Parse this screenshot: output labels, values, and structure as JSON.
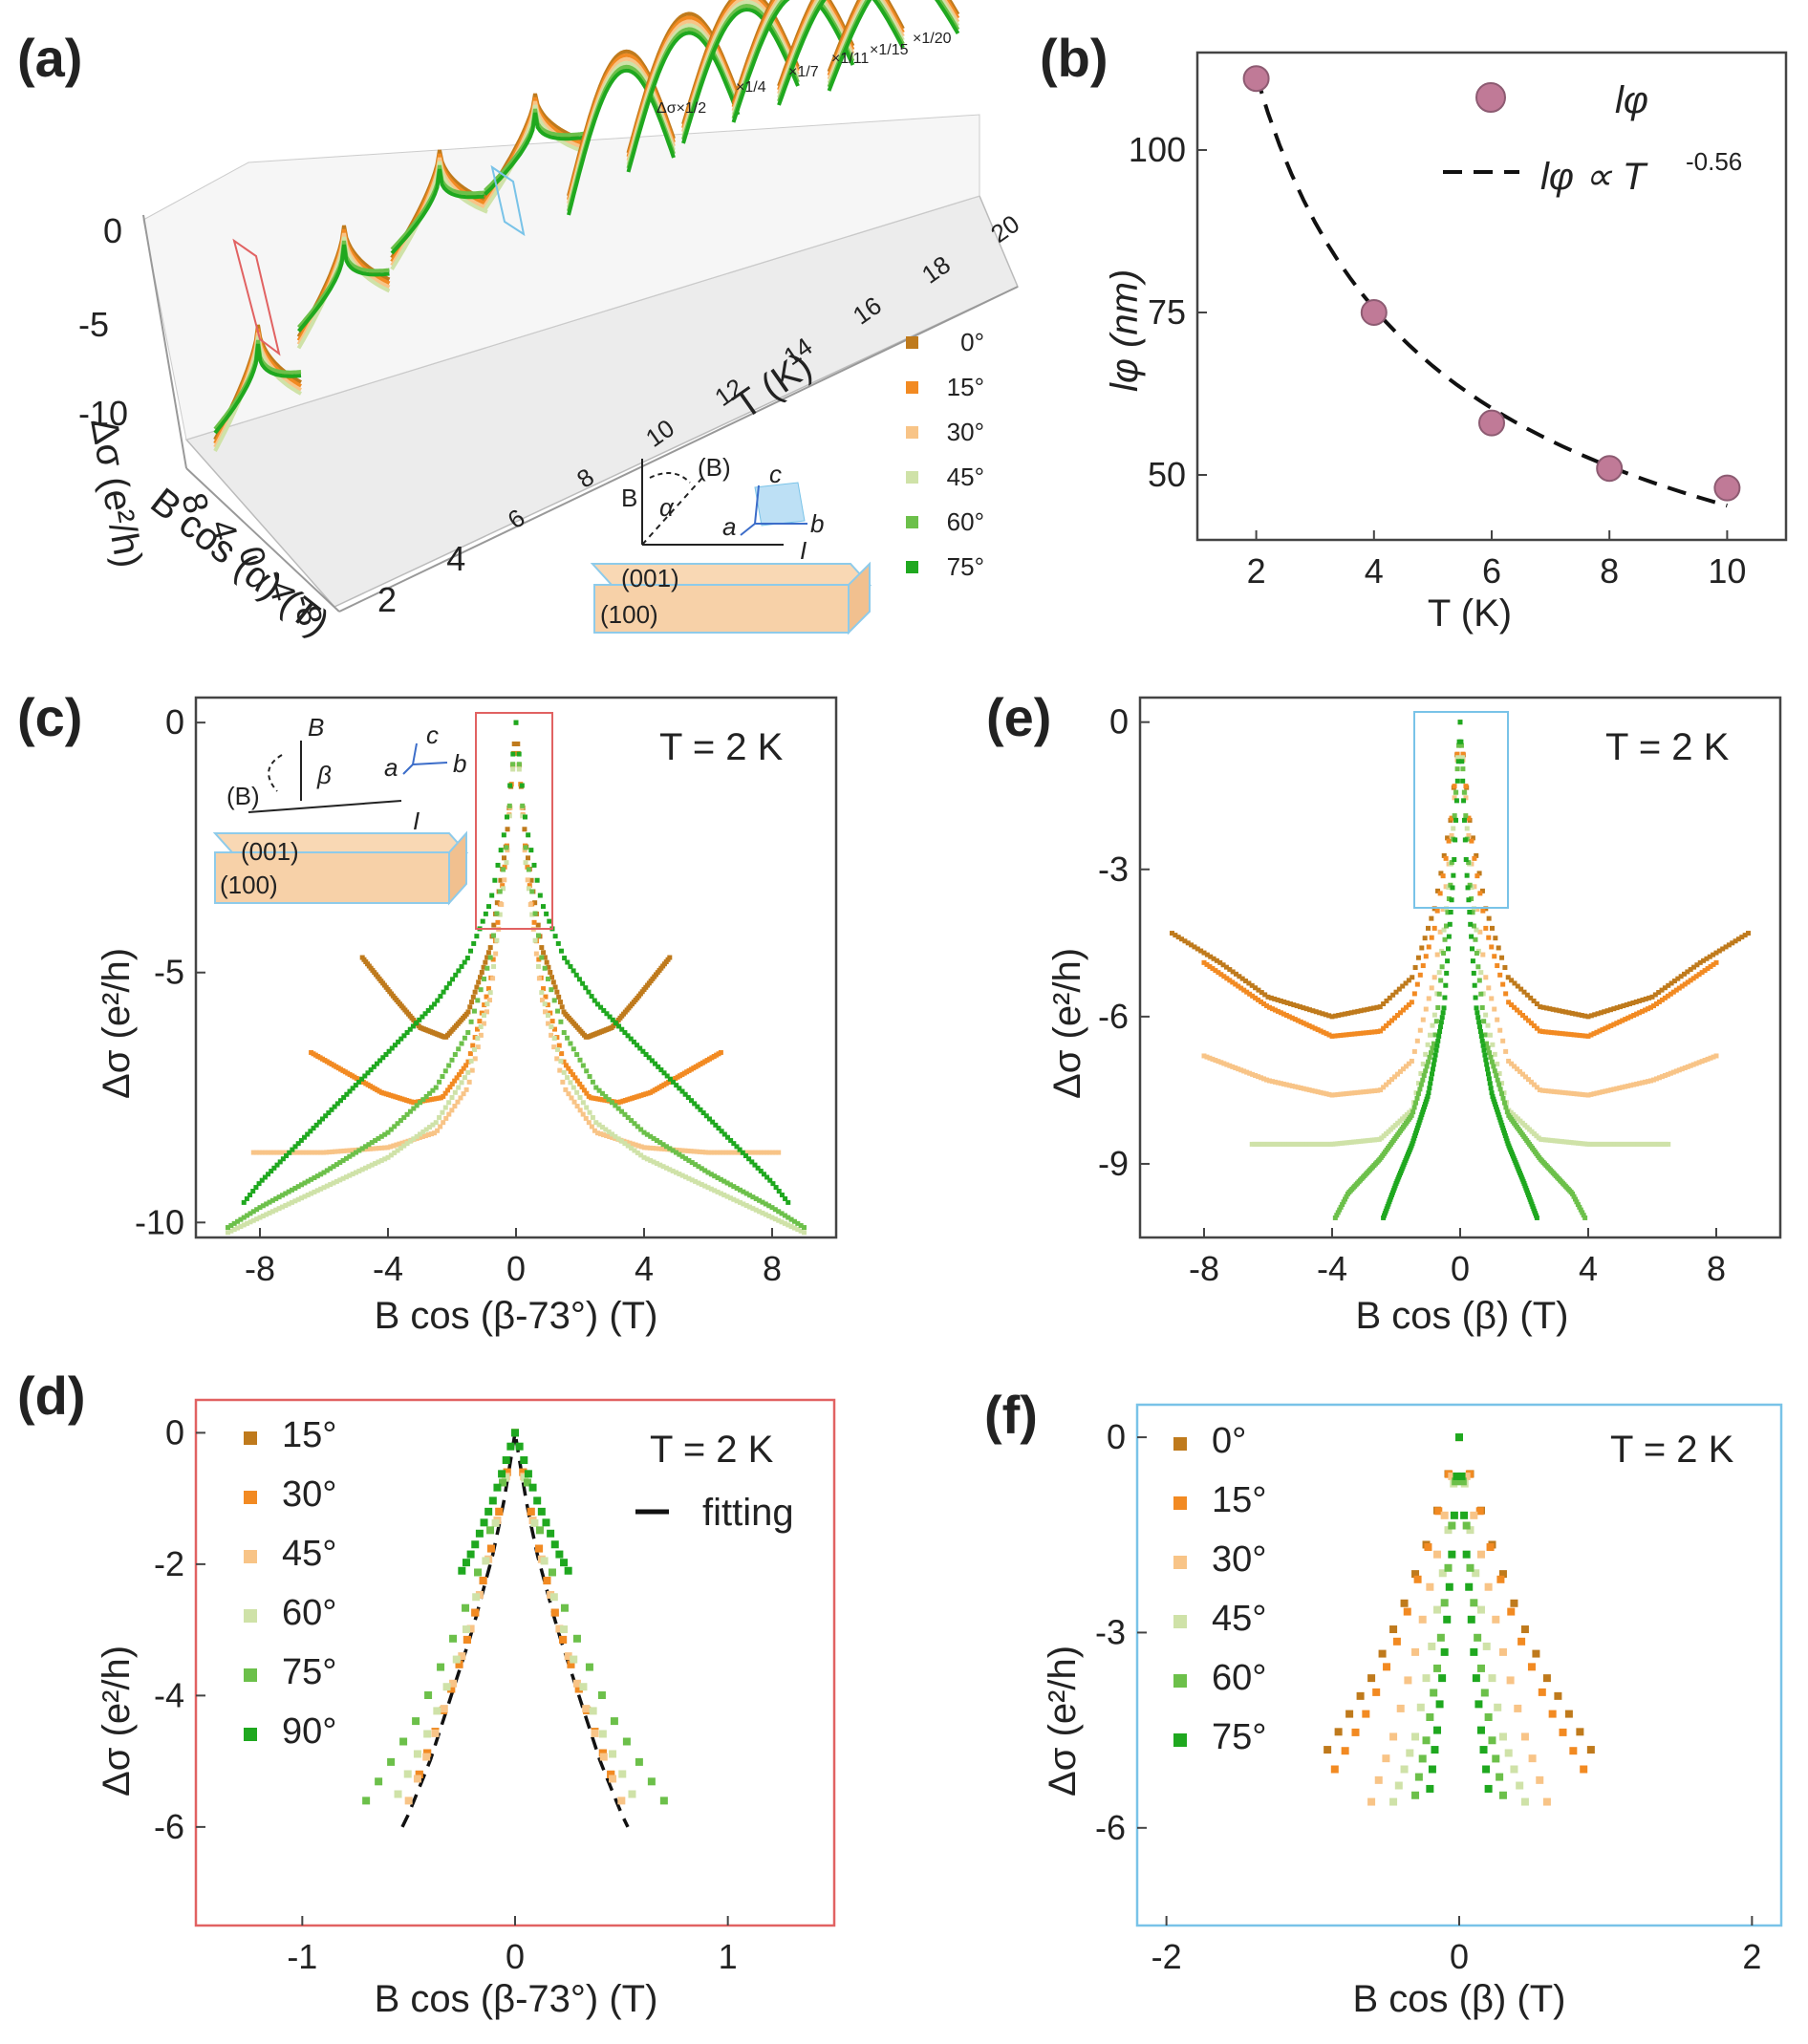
{
  "colors": {
    "deg0": "#bf7a1c",
    "deg15": "#f28a22",
    "deg30": "#f8c487",
    "deg45": "#cfe2a8",
    "deg60": "#6cc04a",
    "deg75": "#1fa81f",
    "marker_b": "#c07a97",
    "box_red": "#e16262",
    "box_blue": "#79c3e8"
  },
  "chart_data": [
    {
      "id": "a",
      "panel_label": "(a)",
      "type": "line",
      "title": "",
      "xlabel": "T (K)",
      "ylabel": "Δσ (e²/h)",
      "zlabel": "B cos (α) (T)",
      "temperature_ticks": [
        "2",
        "4",
        "6",
        "8",
        "10",
        "12",
        "14",
        "16",
        "18",
        "20"
      ],
      "y_ticks": [
        "0",
        "-5",
        "-10"
      ],
      "b_ticks": [
        "8",
        "4",
        "0",
        "-4",
        "-8"
      ],
      "scale_labels": [
        "Δσ×1/2",
        "×1/4",
        "×1/7",
        "×1/11",
        "×1/15",
        "×1/20"
      ],
      "legend": [
        "0°",
        "15°",
        "30°",
        "45°",
        "60°",
        "75°"
      ],
      "inset": {
        "field": "B",
        "angle": "α",
        "rot_field": "(B)",
        "axis_a": "a",
        "axis_b": "b",
        "axis_c": "c",
        "current": "I",
        "face_top": "(001)",
        "face_front": "(100)"
      }
    },
    {
      "id": "b",
      "panel_label": "(b)",
      "type": "scatter",
      "xlabel": "T (K)",
      "ylabel": "lφ (nm)",
      "x": [
        2,
        4,
        6,
        8,
        10
      ],
      "y": [
        111,
        75,
        58,
        51,
        48
      ],
      "fit": {
        "label": "lφ ∝ T",
        "exponent": "-0.56",
        "a": 111.5,
        "p": -0.56
      },
      "legend": [
        "lφ"
      ],
      "xlim": [
        1,
        11
      ],
      "ylim": [
        40,
        115
      ],
      "xticks": [
        "2",
        "4",
        "6",
        "8",
        "10"
      ],
      "yticks": [
        "50",
        "75",
        "100"
      ]
    },
    {
      "id": "c",
      "panel_label": "(c)",
      "type": "scatter",
      "annotation": "T = 2 K",
      "xlabel": "B cos (β-73°) (T)",
      "ylabel": "Δσ (e²/h)",
      "xlim": [
        -10,
        10
      ],
      "ylim": [
        -10.3,
        0.5
      ],
      "xticks": [
        "-8",
        "-4",
        "0",
        "4",
        "8"
      ],
      "yticks": [
        "0",
        "-5",
        "-10"
      ],
      "inset": {
        "field": "B",
        "angle": "β",
        "rot_field": "(B)",
        "axis_a": "a",
        "axis_b": "b",
        "axis_c": "c",
        "current": "I",
        "face_top": "(001)",
        "face_front": "(100)"
      },
      "series": [
        {
          "name": "15°",
          "color": "#bf7a1c",
          "bmax": 4.8,
          "x": [
            0,
            0.3,
            0.8,
            1.5,
            2.2,
            3.0,
            3.8,
            4.8
          ],
          "y": [
            0,
            -2.4,
            -4.5,
            -5.8,
            -6.3,
            -6.1,
            -5.5,
            -4.7
          ]
        },
        {
          "name": "30°",
          "color": "#f28a22",
          "bmax": 6.4,
          "x": [
            0,
            0.3,
            0.8,
            1.5,
            2.3,
            3.2,
            4.2,
            5.3,
            6.4
          ],
          "y": [
            0,
            -2.6,
            -5.2,
            -6.8,
            -7.5,
            -7.6,
            -7.4,
            -7.0,
            -6.6
          ]
        },
        {
          "name": "45°",
          "color": "#f8c487",
          "bmax": 8.2,
          "x": [
            0,
            0.3,
            0.8,
            1.5,
            2.5,
            4.0,
            6.0,
            8.2
          ],
          "y": [
            0,
            -2.8,
            -5.5,
            -7.3,
            -8.2,
            -8.5,
            -8.6,
            -8.6
          ]
        },
        {
          "name": "60°",
          "color": "#cfe2a8",
          "bmax": 9.0,
          "x": [
            0,
            0.3,
            0.8,
            1.5,
            2.5,
            4.0,
            6.0,
            8.0,
            9.0
          ],
          "y": [
            0,
            -2.8,
            -5.4,
            -7.0,
            -8.0,
            -8.7,
            -9.3,
            -9.9,
            -10.2
          ]
        },
        {
          "name": "75°",
          "color": "#6cc04a",
          "bmax": 9.0,
          "x": [
            0,
            0.3,
            0.8,
            1.5,
            2.5,
            4.0,
            6.0,
            8.0,
            9.0
          ],
          "y": [
            0,
            -2.5,
            -4.7,
            -6.2,
            -7.3,
            -8.2,
            -9.0,
            -9.7,
            -10.1
          ]
        },
        {
          "name": "90°",
          "color": "#1fa81f",
          "bmax": 8.5,
          "x": [
            0,
            0.3,
            0.8,
            1.5,
            2.5,
            4.0,
            6.0,
            8.0,
            8.5
          ],
          "y": [
            0,
            -2.0,
            -3.6,
            -4.7,
            -5.6,
            -6.6,
            -7.9,
            -9.2,
            -9.6
          ]
        }
      ]
    },
    {
      "id": "d",
      "panel_label": "(d)",
      "type": "scatter",
      "annotation": "T = 2 K",
      "xlabel": "B cos (β-73°) (T)",
      "ylabel": "Δσ (e²/h)",
      "xlim": [
        -1.5,
        1.5
      ],
      "ylim": [
        -7.5,
        0.5
      ],
      "xticks": [
        "-1",
        "0",
        "1"
      ],
      "yticks": [
        "0",
        "-2",
        "-4",
        "-6"
      ],
      "fit_label": "fitting",
      "fit": {
        "x": [
          0,
          0.05,
          0.1,
          0.15,
          0.2,
          0.25,
          0.3,
          0.35,
          0.4,
          0.45,
          0.5,
          0.53
        ],
        "y": [
          0,
          -1.0,
          -1.8,
          -2.4,
          -3.0,
          -3.5,
          -4.0,
          -4.5,
          -5.0,
          -5.4,
          -5.8,
          -6.0
        ]
      },
      "series": [
        {
          "name": "15°",
          "color": "#bf7a1c",
          "bmax": 0.45,
          "x": [
            0,
            0.1,
            0.2,
            0.3,
            0.45
          ],
          "y": [
            0,
            -1.6,
            -2.9,
            -3.9,
            -5.2
          ]
        },
        {
          "name": "30°",
          "color": "#f28a22",
          "bmax": 0.45,
          "x": [
            0,
            0.1,
            0.2,
            0.3,
            0.45
          ],
          "y": [
            0,
            -1.6,
            -2.9,
            -3.9,
            -5.2
          ]
        },
        {
          "name": "45°",
          "color": "#f8c487",
          "bmax": 0.5,
          "x": [
            0,
            0.1,
            0.2,
            0.3,
            0.4,
            0.5
          ],
          "y": [
            0,
            -1.6,
            -2.9,
            -3.9,
            -4.8,
            -5.6
          ]
        },
        {
          "name": "60°",
          "color": "#cfe2a8",
          "bmax": 0.55,
          "x": [
            0,
            0.1,
            0.2,
            0.3,
            0.4,
            0.55
          ],
          "y": [
            0,
            -1.5,
            -2.7,
            -3.7,
            -4.5,
            -5.5
          ]
        },
        {
          "name": "75°",
          "color": "#6cc04a",
          "bmax": 0.7,
          "x": [
            0,
            0.1,
            0.2,
            0.3,
            0.45,
            0.6,
            0.7
          ],
          "y": [
            0,
            -1.3,
            -2.4,
            -3.2,
            -4.3,
            -5.1,
            -5.6
          ]
        },
        {
          "name": "90°",
          "color": "#1fa81f",
          "bmax": 0.25,
          "x": [
            0,
            0.1,
            0.2,
            0.25
          ],
          "y": [
            0,
            -1.0,
            -1.8,
            -2.1
          ]
        }
      ]
    },
    {
      "id": "e",
      "panel_label": "(e)",
      "type": "scatter",
      "annotation": "T = 2 K",
      "xlabel": "B cos (β) (T)",
      "ylabel": "Δσ (e²/h)",
      "xlim": [
        -10,
        10
      ],
      "ylim": [
        -10.5,
        0.5
      ],
      "xticks": [
        "-8",
        "-4",
        "0",
        "4",
        "8"
      ],
      "yticks": [
        "0",
        "-3",
        "-6",
        "-9"
      ],
      "series": [
        {
          "name": "0°",
          "color": "#bf7a1c",
          "bmax": 9.0,
          "x": [
            0,
            0.3,
            0.8,
            1.5,
            2.5,
            4.0,
            6.0,
            7.5,
            9.0
          ],
          "y": [
            0,
            -2.0,
            -3.8,
            -5.2,
            -5.8,
            -6.0,
            -5.6,
            -4.9,
            -4.3
          ]
        },
        {
          "name": "15°",
          "color": "#f28a22",
          "bmax": 8.0,
          "x": [
            0,
            0.3,
            0.8,
            1.5,
            2.5,
            4.0,
            6.0,
            8.0
          ],
          "y": [
            0,
            -2.2,
            -4.2,
            -5.7,
            -6.3,
            -6.4,
            -5.8,
            -4.9
          ]
        },
        {
          "name": "30°",
          "color": "#f8c487",
          "bmax": 8.0,
          "x": [
            0,
            0.3,
            0.8,
            1.5,
            2.5,
            4.0,
            6.0,
            8.0
          ],
          "y": [
            0,
            -2.6,
            -5.2,
            -6.9,
            -7.5,
            -7.6,
            -7.3,
            -6.8
          ]
        },
        {
          "name": "45°",
          "color": "#cfe2a8",
          "bmax": 6.5,
          "x": [
            0,
            0.3,
            0.8,
            1.5,
            2.5,
            4.0,
            6.5
          ],
          "y": [
            0,
            -3.0,
            -6.0,
            -7.9,
            -8.5,
            -8.6,
            -8.6
          ]
        },
        {
          "name": "60°",
          "color": "#6cc04a",
          "bmax": 3.9,
          "x": [
            0,
            0.3,
            0.8,
            1.5,
            2.5,
            3.5,
            3.9
          ],
          "y": [
            0,
            -3.3,
            -6.5,
            -8.0,
            -8.9,
            -9.6,
            -10.1
          ]
        },
        {
          "name": "75°",
          "color": "#1fa81f",
          "bmax": 2.4,
          "x": [
            0,
            0.2,
            0.5,
            1.0,
            1.5,
            2.0,
            2.4
          ],
          "y": [
            0,
            -3.0,
            -5.8,
            -7.6,
            -8.6,
            -9.4,
            -10.1
          ]
        }
      ]
    },
    {
      "id": "f",
      "panel_label": "(f)",
      "type": "scatter",
      "annotation": "T = 2 K",
      "xlabel": "B cos (β) (T)",
      "ylabel": "Δσ (e²/h)",
      "xlim": [
        -2.2,
        2.2
      ],
      "ylim": [
        -7.5,
        0.5
      ],
      "xticks": [
        "-2",
        "0",
        "2"
      ],
      "yticks": [
        "0",
        "-3",
        "-6"
      ],
      "series": [
        {
          "name": "0°",
          "color": "#bf7a1c",
          "bmax": 0.9,
          "x": [
            0,
            0.2,
            0.4,
            0.6,
            0.9
          ],
          "y": [
            0,
            -1.5,
            -2.7,
            -3.7,
            -4.8
          ]
        },
        {
          "name": "15°",
          "color": "#f28a22",
          "bmax": 0.85,
          "x": [
            0,
            0.2,
            0.4,
            0.6,
            0.85
          ],
          "y": [
            0,
            -1.6,
            -3.0,
            -4.1,
            -5.1
          ]
        },
        {
          "name": "30°",
          "color": "#f8c487",
          "bmax": 0.6,
          "x": [
            0,
            0.15,
            0.3,
            0.45,
            0.6
          ],
          "y": [
            0,
            -1.8,
            -3.3,
            -4.6,
            -5.6
          ]
        },
        {
          "name": "45°",
          "color": "#cfe2a8",
          "bmax": 0.45,
          "x": [
            0,
            0.1,
            0.2,
            0.3,
            0.45
          ],
          "y": [
            0,
            -1.9,
            -3.4,
            -4.6,
            -5.6
          ]
        },
        {
          "name": "60°",
          "color": "#6cc04a",
          "bmax": 0.3,
          "x": [
            0,
            0.07,
            0.14,
            0.22,
            0.3
          ],
          "y": [
            0,
            -1.9,
            -3.4,
            -4.6,
            -5.5
          ]
        },
        {
          "name": "75°",
          "color": "#1fa81f",
          "bmax": 0.2,
          "x": [
            0,
            0.05,
            0.1,
            0.15,
            0.2
          ],
          "y": [
            0,
            -1.8,
            -3.3,
            -4.5,
            -5.4
          ]
        }
      ]
    }
  ]
}
